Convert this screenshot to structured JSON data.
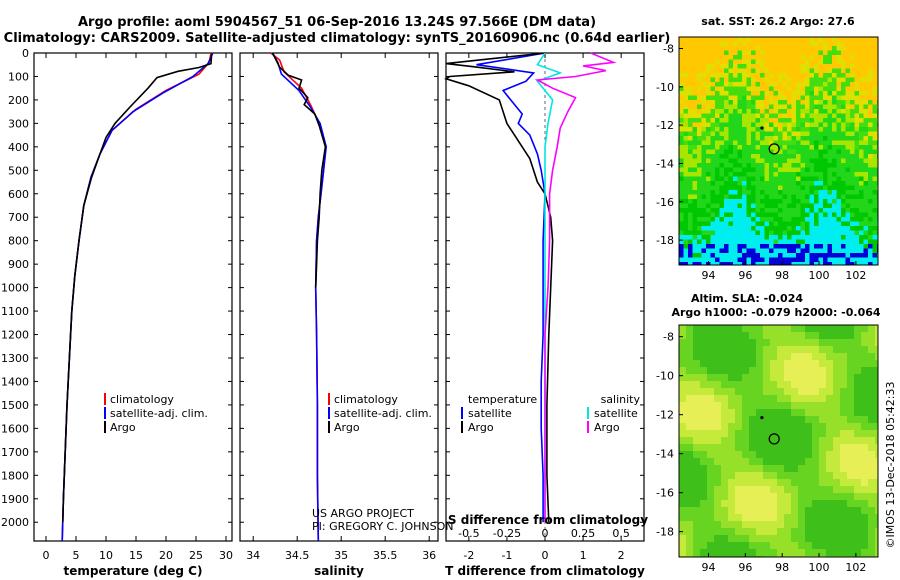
{
  "header": {
    "line1": "Argo profile: aoml 5904567_51 06-Sep-2016 13.24S 97.566E (DM data)",
    "line2": "Climatology: CARS2009. Satellite-adjusted climatology: synTS_20160906.nc (0.64d earlier)"
  },
  "watermark": "©IMOS 13-Dec-2018 05:42:33",
  "colors": {
    "climatology": "#ff0000",
    "satellite": "#0000ff",
    "argo": "#000000",
    "salinity_satellite": "#00e5e5",
    "salinity_argo": "#ff00ff"
  },
  "chart_data": [
    {
      "type": "line",
      "id": "temperature",
      "xlabel": "temperature (deg C)",
      "xlim": [
        -2,
        31
      ],
      "ylim": [
        2080,
        0
      ],
      "xticks": [
        "0",
        "5",
        "10",
        "15",
        "20",
        "25",
        "30"
      ],
      "xtick_values": [
        0,
        5,
        10,
        15,
        20,
        25,
        30
      ],
      "yticks": [
        "0",
        "100",
        "200",
        "300",
        "400",
        "500",
        "600",
        "700",
        "800",
        "900",
        "1000",
        "1100",
        "1200",
        "1300",
        "1400",
        "1500",
        "1600",
        "1700",
        "1800",
        "1900",
        "2000"
      ],
      "legend": [
        "climatology",
        "satellite-adj. clim.",
        "Argo"
      ],
      "series": [
        {
          "name": "climatology",
          "color": "#ff0000",
          "points": [
            [
              27.5,
              0
            ],
            [
              27.2,
              40
            ],
            [
              25.5,
              90
            ],
            [
              20,
              160
            ],
            [
              15,
              240
            ],
            [
              11,
              330
            ],
            [
              9,
              430
            ],
            [
              7.5,
              530
            ],
            [
              6.3,
              650
            ],
            [
              5.5,
              800
            ],
            [
              4.8,
              950
            ],
            [
              4.3,
              1100
            ],
            [
              3.9,
              1300
            ],
            [
              3.5,
              1500
            ],
            [
              3.2,
              1700
            ],
            [
              2.9,
              1900
            ],
            [
              2.7,
              2080
            ]
          ]
        },
        {
          "name": "satellite-adj. clim.",
          "color": "#0000ff",
          "points": [
            [
              27.8,
              0
            ],
            [
              27.0,
              45
            ],
            [
              24.5,
              100
            ],
            [
              19.5,
              170
            ],
            [
              14.5,
              250
            ],
            [
              11,
              330
            ],
            [
              9,
              430
            ],
            [
              7.5,
              530
            ],
            [
              6.3,
              650
            ],
            [
              5.5,
              800
            ],
            [
              4.8,
              950
            ],
            [
              4.3,
              1100
            ],
            [
              3.9,
              1300
            ],
            [
              3.5,
              1500
            ],
            [
              3.2,
              1700
            ],
            [
              2.9,
              1900
            ],
            [
              2.7,
              2080
            ]
          ]
        },
        {
          "name": "Argo",
          "color": "#000000",
          "points": [
            [
              27.6,
              5
            ],
            [
              27.5,
              45
            ],
            [
              25.5,
              62
            ],
            [
              22,
              78
            ],
            [
              18.5,
              105
            ],
            [
              17,
              150
            ],
            [
              14,
              230
            ],
            [
              11.5,
              300
            ],
            [
              10,
              360
            ],
            [
              9,
              430
            ],
            [
              7.6,
              530
            ],
            [
              6.3,
              650
            ],
            [
              5.5,
              800
            ],
            [
              4.8,
              950
            ],
            [
              4.3,
              1100
            ],
            [
              3.9,
              1300
            ],
            [
              3.5,
              1500
            ],
            [
              3.2,
              1700
            ],
            [
              2.9,
              1900
            ],
            [
              2.8,
              2000
            ]
          ]
        }
      ]
    },
    {
      "type": "line",
      "id": "salinity",
      "xlabel": "salinity",
      "xlim": [
        33.85,
        36.1
      ],
      "ylim": [
        2080,
        0
      ],
      "xticks": [
        "34",
        "34.5",
        "35",
        "35.5",
        "36"
      ],
      "xtick_values": [
        34,
        34.5,
        35,
        35.5,
        36
      ],
      "legend": [
        "climatology",
        "satellite-adj. clim.",
        "Argo"
      ],
      "series": [
        {
          "name": "climatology",
          "color": "#ff0000",
          "points": [
            [
              34.2,
              0
            ],
            [
              34.3,
              30
            ],
            [
              34.35,
              80
            ],
            [
              34.55,
              150
            ],
            [
              34.65,
              220
            ],
            [
              34.75,
              300
            ],
            [
              34.82,
              400
            ],
            [
              34.8,
              500
            ],
            [
              34.77,
              600
            ],
            [
              34.74,
              700
            ],
            [
              34.72,
              800
            ],
            [
              34.71,
              1000
            ],
            [
              34.72,
              1200
            ],
            [
              34.73,
              1500
            ],
            [
              34.73,
              1800
            ],
            [
              34.74,
              2080
            ]
          ]
        },
        {
          "name": "satellite-adj. clim.",
          "color": "#0000ff",
          "points": [
            [
              34.22,
              0
            ],
            [
              34.28,
              40
            ],
            [
              34.32,
              90
            ],
            [
              34.52,
              160
            ],
            [
              34.65,
              230
            ],
            [
              34.76,
              300
            ],
            [
              34.83,
              400
            ],
            [
              34.8,
              500
            ],
            [
              34.77,
              600
            ],
            [
              34.74,
              700
            ],
            [
              34.72,
              800
            ],
            [
              34.71,
              1000
            ],
            [
              34.72,
              1200
            ],
            [
              34.73,
              1500
            ],
            [
              34.73,
              1800
            ],
            [
              34.74,
              2080
            ]
          ]
        },
        {
          "name": "Argo",
          "color": "#000000",
          "points": [
            [
              34.22,
              0
            ],
            [
              34.3,
              60
            ],
            [
              34.4,
              95
            ],
            [
              34.55,
              115
            ],
            [
              34.52,
              150
            ],
            [
              34.62,
              190
            ],
            [
              34.58,
              220
            ],
            [
              34.7,
              260
            ],
            [
              34.75,
              310
            ],
            [
              34.82,
              400
            ],
            [
              34.78,
              500
            ],
            [
              34.76,
              600
            ],
            [
              34.75,
              700
            ],
            [
              34.73,
              800
            ],
            [
              34.72,
              900
            ],
            [
              34.71,
              1000
            ]
          ]
        }
      ],
      "annotations": [
        "US ARGO PROJECT",
        "PI: GREGORY C. JOHNSON"
      ]
    },
    {
      "type": "line",
      "id": "differences",
      "xlabel": "T difference from climatology",
      "top_axis_label": "S difference from climatology",
      "xlim": [
        -2.6,
        2.6
      ],
      "ylim": [
        2080,
        0
      ],
      "xticks": [
        "-2",
        "-1",
        "0",
        "1",
        "2"
      ],
      "xtick_values": [
        -2,
        -1,
        0,
        1,
        2
      ],
      "s_xlim": [
        -0.65,
        0.65
      ],
      "s_xticks": [
        "-0.5",
        "-0.25",
        "0",
        "0.25",
        "0.5"
      ],
      "s_xtick_values": [
        -0.5,
        -0.25,
        0,
        0.25,
        0.5
      ],
      "legend_temperature": [
        "temperature",
        "satellite",
        "Argo"
      ],
      "legend_salinity": [
        "salinity",
        "satellite",
        "Argo"
      ],
      "series": [
        {
          "name": "temperature satellite",
          "color": "#0000ff",
          "axis": "T",
          "points": [
            [
              0,
              0
            ],
            [
              -1.8,
              50
            ],
            [
              -0.3,
              85
            ],
            [
              -0.5,
              120
            ],
            [
              -1.1,
              160
            ],
            [
              -0.9,
              200
            ],
            [
              -0.6,
              260
            ],
            [
              -0.7,
              300
            ],
            [
              -0.4,
              350
            ],
            [
              -0.2,
              430
            ],
            [
              -0.1,
              500
            ],
            [
              0,
              600
            ],
            [
              -0.05,
              800
            ],
            [
              -0.05,
              1000
            ],
            [
              -0.05,
              1200
            ],
            [
              -0.1,
              1400
            ],
            [
              -0.1,
              1600
            ],
            [
              -0.05,
              1800
            ],
            [
              -0.05,
              2000
            ]
          ]
        },
        {
          "name": "temperature Argo",
          "color": "#000000",
          "axis": "T",
          "points": [
            [
              0,
              0
            ],
            [
              -2.6,
              45
            ],
            [
              -1.8,
              60
            ],
            [
              -0.8,
              80
            ],
            [
              -2.5,
              100
            ],
            [
              -2.6,
              110
            ],
            [
              -2.0,
              140
            ],
            [
              -1.2,
              200
            ],
            [
              -1.0,
              300
            ],
            [
              -0.8,
              350
            ],
            [
              -0.4,
              450
            ],
            [
              -0.2,
              550
            ],
            [
              0,
              600
            ],
            [
              0.15,
              700
            ],
            [
              0.2,
              800
            ],
            [
              0.15,
              1000
            ],
            [
              0.1,
              1200
            ],
            [
              0.05,
              1500
            ],
            [
              0.05,
              1800
            ],
            [
              0.1,
              2000
            ]
          ]
        },
        {
          "name": "salinity satellite",
          "color": "#00e5e5",
          "axis": "S",
          "points": [
            [
              0,
              0
            ],
            [
              -0.05,
              50
            ],
            [
              0.1,
              85
            ],
            [
              -0.05,
              120
            ],
            [
              0.05,
              200
            ],
            [
              0.02,
              300
            ],
            [
              0,
              400
            ],
            [
              0,
              600
            ],
            [
              0,
              800
            ],
            [
              0,
              1000
            ],
            [
              0,
              1200
            ],
            [
              0,
              1400
            ],
            [
              0,
              1600
            ],
            [
              0,
              1800
            ],
            [
              0,
              2000
            ]
          ]
        },
        {
          "name": "salinity Argo",
          "color": "#ff00ff",
          "axis": "S",
          "points": [
            [
              0.3,
              0
            ],
            [
              0.45,
              40
            ],
            [
              0.25,
              55
            ],
            [
              0.4,
              75
            ],
            [
              0.2,
              100
            ],
            [
              -0.05,
              115
            ],
            [
              0.05,
              150
            ],
            [
              0.2,
              190
            ],
            [
              0.15,
              250
            ],
            [
              0.1,
              320
            ],
            [
              0.08,
              400
            ],
            [
              0.05,
              500
            ],
            [
              0.03,
              600
            ],
            [
              0.03,
              800
            ],
            [
              0.02,
              1000
            ],
            [
              0.0,
              1200
            ],
            [
              0.0,
              1500
            ],
            [
              0.0,
              1800
            ],
            [
              0.0,
              2000
            ]
          ]
        }
      ]
    },
    {
      "type": "heatmap",
      "id": "sst_map",
      "title": "sat. SST: 26.2 Argo: 27.6",
      "xlim": [
        92.4,
        103.2
      ],
      "ylim": [
        -19.3,
        -7.4
      ],
      "xticks": [
        "94",
        "96",
        "98",
        "100",
        "102"
      ],
      "xtick_values": [
        94,
        96,
        98,
        100,
        102
      ],
      "yticks": [
        "-8",
        "-10",
        "-12",
        "-14",
        "-16",
        "-18"
      ],
      "ytick_values": [
        -8,
        -10,
        -12,
        -14,
        -16,
        -18
      ],
      "profile_position": [
        97.566,
        -13.24
      ],
      "previous_position": [
        96.9,
        -12.15
      ]
    },
    {
      "type": "heatmap",
      "id": "sla_map",
      "title1": "Altim. SLA: -0.024",
      "title2": "Argo h1000: -0.079 h2000: -0.064",
      "xlim": [
        92.4,
        103.2
      ],
      "ylim": [
        -19.3,
        -7.4
      ],
      "xticks": [
        "94",
        "96",
        "98",
        "100",
        "102"
      ],
      "xtick_values": [
        94,
        96,
        98,
        100,
        102
      ],
      "yticks": [
        "-8",
        "-10",
        "-12",
        "-14",
        "-16",
        "-18"
      ],
      "ytick_values": [
        -8,
        -10,
        -12,
        -14,
        -16,
        -18
      ],
      "profile_position": [
        97.566,
        -13.24
      ],
      "previous_position": [
        96.9,
        -12.15
      ]
    }
  ]
}
